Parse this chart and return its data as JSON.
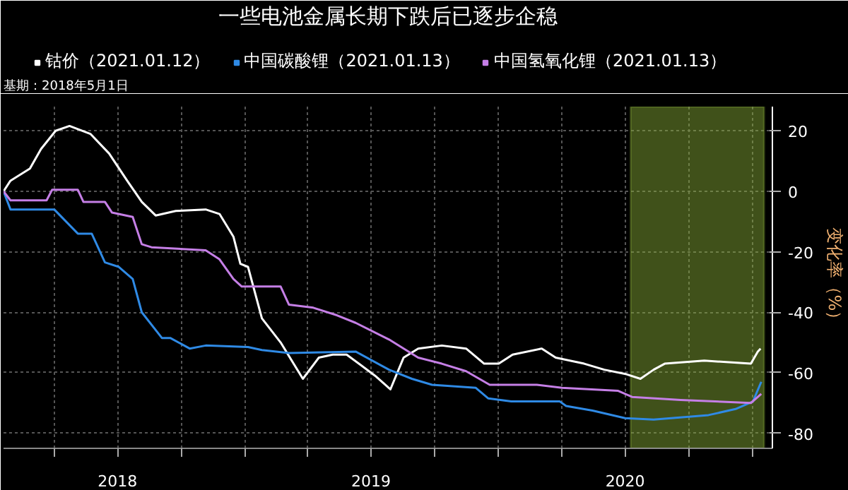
{
  "chart_data": {
    "type": "line",
    "title": "一些电池金属长期下跌后已逐步企稳",
    "ylabel": "变化率（%）",
    "annotations": [
      "基期：2018年5月1日"
    ],
    "series": [
      {
        "name": "钴价（2021.01.12）",
        "color": "#ffffff",
        "x": [
          "2018-01-18",
          "2018-01-28",
          "2018-02-25",
          "2018-03-13",
          "2018-04-03",
          "2018-04-23",
          "2018-05-23",
          "2018-06-19",
          "2018-07-15",
          "2018-08-05",
          "2018-08-25",
          "2018-09-23",
          "2018-11-05",
          "2018-11-25",
          "2018-12-15",
          "2018-12-25",
          "2019-01-05",
          "2019-01-25",
          "2019-02-21",
          "2019-03-25",
          "2019-04-17",
          "2019-05-07",
          "2019-05-27",
          "2019-07-07",
          "2019-07-29",
          "2019-08-17",
          "2019-09-07",
          "2019-10-11",
          "2019-11-15",
          "2019-12-11",
          "2020-01-01",
          "2020-01-21",
          "2020-03-03",
          "2020-03-23",
          "2020-05-03",
          "2020-06-01",
          "2020-07-03",
          "2020-07-23",
          "2020-08-11",
          "2020-08-27",
          "2020-10-23",
          "2020-12-29",
          "2021-01-08",
          "2021-01-12"
        ],
        "values": [
          0,
          3.5,
          7.5,
          14,
          20,
          21.6,
          19,
          12.5,
          3.5,
          -3.5,
          -8,
          -6.5,
          -6,
          -7.5,
          -15,
          -24,
          -25,
          -42,
          -50,
          -62,
          -55,
          -54,
          -54,
          -61,
          -65.5,
          -55,
          -52,
          -51,
          -52,
          -57,
          -57,
          -54,
          -52,
          -55,
          -57,
          -59,
          -60.5,
          -62,
          -59,
          -57,
          -56,
          -57,
          -53,
          -52
        ]
      },
      {
        "name": "中国碳酸锂（2021.01.13）",
        "color": "#2f8ae5",
        "x": [
          "2018-01-18",
          "2018-01-28",
          "2018-04-01",
          "2018-05-05",
          "2018-05-25",
          "2018-06-13",
          "2018-07-03",
          "2018-07-23",
          "2018-08-05",
          "2018-09-03",
          "2018-09-15",
          "2018-10-13",
          "2018-11-05",
          "2019-01-05",
          "2019-01-25",
          "2019-03-05",
          "2019-06-09",
          "2019-07-27",
          "2019-08-29",
          "2019-09-27",
          "2019-11-29",
          "2019-12-17",
          "2020-01-19",
          "2020-03-29",
          "2020-04-07",
          "2020-05-15",
          "2020-07-01",
          "2020-08-11",
          "2020-10-29",
          "2020-12-07",
          "2021-01-01",
          "2021-01-13"
        ],
        "values": [
          0,
          -6,
          -6,
          -14,
          -14,
          -23.5,
          -25,
          -29,
          -40,
          -48.5,
          -48.5,
          -52,
          -51,
          -51.5,
          -52.5,
          -53.5,
          -53,
          -59,
          -62,
          -64,
          -65,
          -68.5,
          -69.5,
          -69.5,
          -71,
          -72.5,
          -75,
          -75.5,
          -74,
          -72,
          -69.5,
          -63
        ]
      },
      {
        "name": "中国氢氧化锂（2021.01.13）",
        "color": "#c57fe6",
        "x": [
          "2018-01-18",
          "2018-01-28",
          "2018-03-21",
          "2018-03-29",
          "2018-05-05",
          "2018-05-13",
          "2018-06-13",
          "2018-06-23",
          "2018-07-23",
          "2018-08-05",
          "2018-08-19",
          "2018-11-05",
          "2018-11-25",
          "2018-12-15",
          "2018-12-27",
          "2019-02-21",
          "2019-03-05",
          "2019-04-09",
          "2019-05-13",
          "2019-06-09",
          "2019-07-27",
          "2019-09-07",
          "2019-10-11",
          "2019-11-15",
          "2019-12-19",
          "2020-02-25",
          "2020-04-01",
          "2020-06-21",
          "2020-07-11",
          "2020-09-19",
          "2020-12-29",
          "2021-01-13"
        ],
        "values": [
          0,
          -3,
          -3,
          0.5,
          0.5,
          -3.5,
          -3.5,
          -7,
          -8.5,
          -17.5,
          -18.5,
          -19.5,
          -22.5,
          -29,
          -31.5,
          -31.5,
          -37.5,
          -38.5,
          -41,
          -43.5,
          -49,
          -55,
          -57,
          -59.5,
          -64,
          -64,
          -65,
          -66,
          -68,
          -69,
          -70,
          -67
        ]
      }
    ],
    "bands": [
      {
        "axis": "x",
        "from": "2020-07-09",
        "to": "2021-01-17",
        "color": "#8db33a"
      }
    ],
    "xlim": [
      "2018-01-18",
      "2021-01-29"
    ],
    "xticks": [
      {
        "value": "2018-04-01",
        "label": null
      },
      {
        "value": "2018-07-01",
        "label": "2018"
      },
      {
        "value": "2018-10-01",
        "label": null
      },
      {
        "value": "2019-01-01",
        "label": null
      },
      {
        "value": "2019-04-01",
        "label": null
      },
      {
        "value": "2019-07-01",
        "label": "2019"
      },
      {
        "value": "2019-10-01",
        "label": null
      },
      {
        "value": "2020-01-01",
        "label": null
      },
      {
        "value": "2020-04-01",
        "label": null
      },
      {
        "value": "2020-07-01",
        "label": "2020"
      },
      {
        "value": "2020-10-01",
        "label": null
      },
      {
        "value": "2021-01-01",
        "label": null
      }
    ],
    "ylim": [
      -85,
      28
    ],
    "yticks": [
      20,
      0,
      -20,
      -40,
      -60,
      -80
    ],
    "grid": true,
    "legend": "top",
    "marker": "none",
    "line_style": "solid"
  }
}
